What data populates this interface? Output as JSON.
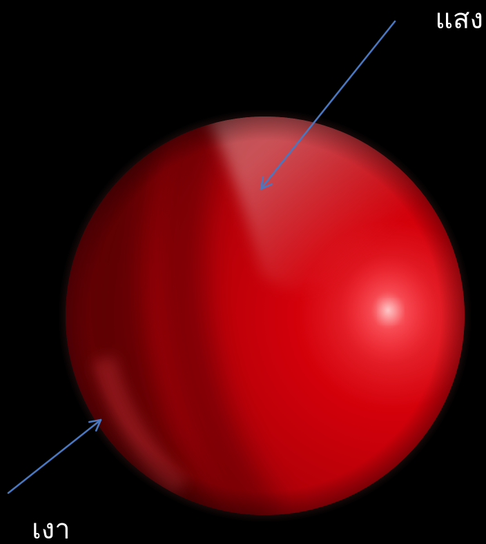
{
  "labels": {
    "light": "แสง",
    "shadow": "เงา"
  },
  "colors": {
    "background": "#000000",
    "sphere_base": "#c40008",
    "sphere_highlight": "#ff5a60",
    "sphere_shadow": "#6a0004",
    "arrow": "#4a78c0",
    "text": "#ffffff"
  }
}
